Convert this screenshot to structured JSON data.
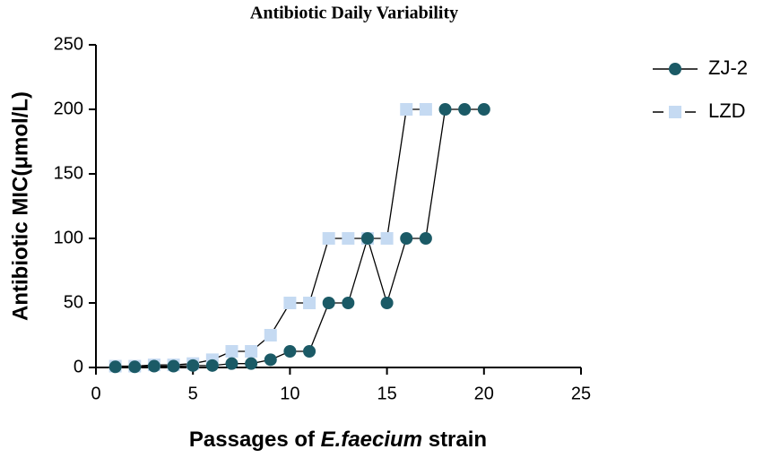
{
  "chart_data": {
    "type": "line",
    "title": "Antibiotic Daily Variability",
    "xlabel_parts": [
      {
        "text": "Passages of "
      },
      {
        "text": "E.faecium",
        "italic": true
      },
      {
        "text": " strain"
      }
    ],
    "ylabel": "Antibiotic MIC(μmol/L)",
    "xlim": [
      0,
      25
    ],
    "xticks": [
      0,
      5,
      10,
      15,
      20,
      25
    ],
    "ylim": [
      0,
      250
    ],
    "yticks": [
      0,
      50,
      100,
      150,
      200,
      250
    ],
    "legend": "right",
    "series": [
      {
        "name": "ZJ-2",
        "color": "#1b5a66",
        "marker": "circle",
        "x": [
          1,
          2,
          3,
          4,
          5,
          6,
          7,
          8,
          9,
          10,
          11,
          12,
          13,
          14,
          15,
          16,
          17,
          18,
          19,
          20
        ],
        "values": [
          0.5,
          0.5,
          1,
          1,
          1.5,
          1.5,
          3,
          3,
          6,
          12.5,
          12.5,
          50,
          50,
          100,
          50,
          100,
          100,
          200,
          200,
          200
        ]
      },
      {
        "name": "LZD",
        "color": "#c5daf2",
        "marker": "square",
        "x": [
          1,
          2,
          3,
          4,
          5,
          6,
          7,
          8,
          9,
          10,
          11,
          12,
          13,
          14,
          15,
          16,
          17
        ],
        "values": [
          1,
          1,
          2,
          2,
          3,
          6,
          12.5,
          12.5,
          25,
          50,
          50,
          100,
          100,
          100,
          100,
          200,
          200
        ]
      }
    ]
  }
}
